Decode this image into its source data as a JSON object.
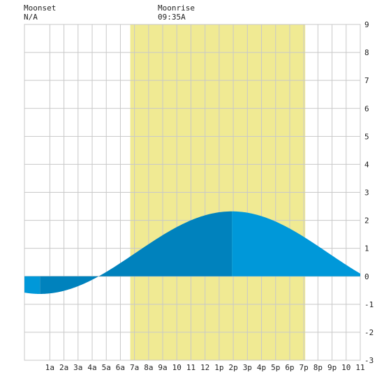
{
  "header": {
    "moonset_label": "Moonset",
    "moonset_time": "N/A",
    "moonrise_label": "Moonrise",
    "moonrise_time": "09:35A"
  },
  "chart_data": {
    "type": "area",
    "title": "",
    "xlabel": "",
    "ylabel": "",
    "x_range_hours": [
      -0.8,
      23
    ],
    "ylim": [
      -3,
      9
    ],
    "grid": true,
    "x_tick_labels": [
      "1a",
      "2a",
      "3a",
      "4a",
      "5a",
      "6a",
      "7a",
      "8a",
      "9a",
      "10",
      "11",
      "12",
      "1p",
      "2p",
      "3p",
      "4p",
      "5p",
      "6p",
      "7p",
      "8p",
      "9p",
      "10",
      "11"
    ],
    "x_tick_hours": [
      1,
      2,
      3,
      4,
      5,
      6,
      7,
      8,
      9,
      10,
      11,
      12,
      13,
      14,
      15,
      16,
      17,
      18,
      19,
      20,
      21,
      22,
      23
    ],
    "y_ticks": [
      9,
      8,
      7,
      6,
      5,
      4,
      3,
      2,
      1,
      0,
      -1,
      -2,
      -3
    ],
    "daylight_hours": [
      6.7,
      19.1
    ],
    "extremes": [
      {
        "type": "low",
        "hour": 0.3,
        "value": -0.63
      },
      {
        "type": "high",
        "hour": 13.9,
        "value": 2.32
      }
    ],
    "colors": {
      "daylight": "#f0ea93",
      "tide_rising": "#0082bd",
      "tide_falling": "#0098d9",
      "grid": "#c8c8c8",
      "background": "#ffffff"
    }
  }
}
